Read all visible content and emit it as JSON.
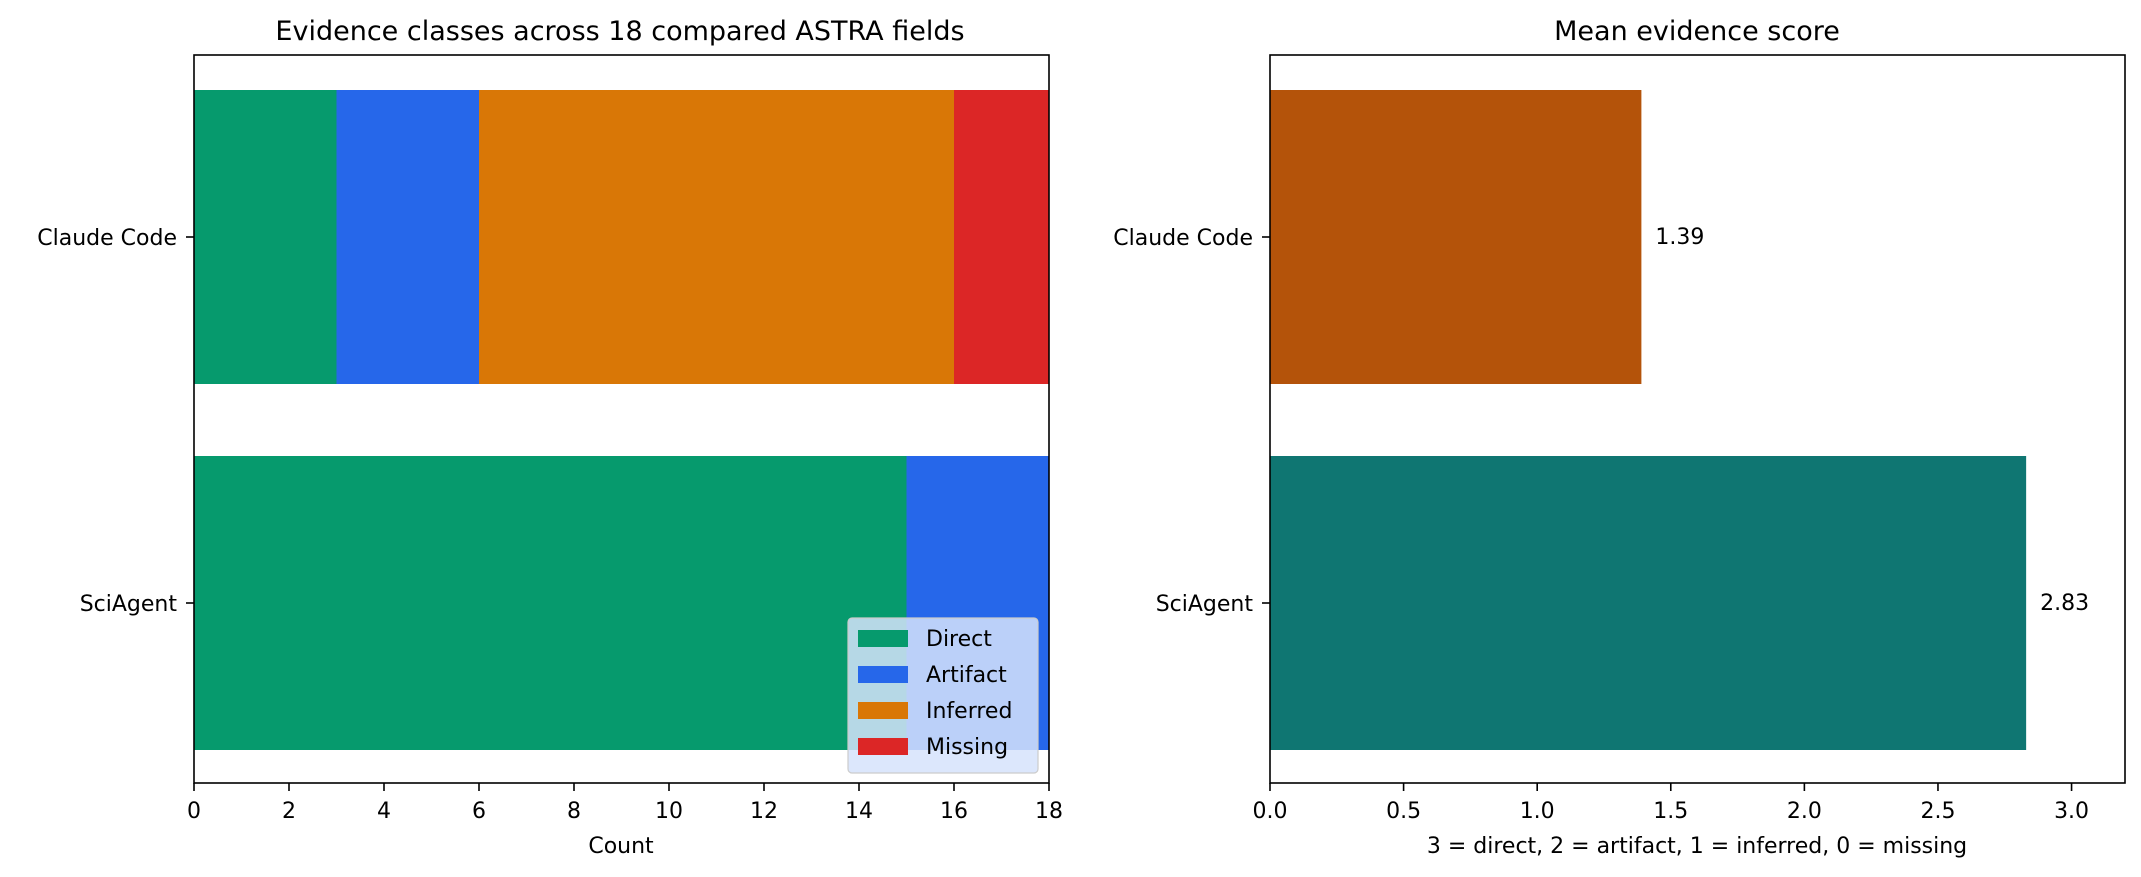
{
  "chart_data": [
    {
      "type": "bar",
      "orientation": "horizontal",
      "stacked": true,
      "title": "Evidence classes across 18 compared ASTRA fields",
      "xlabel": "Count",
      "ylabel": "",
      "xlim": [
        0,
        18
      ],
      "xticks": [
        0,
        2,
        4,
        6,
        8,
        10,
        12,
        14,
        16,
        18
      ],
      "categories": [
        "Claude Code",
        "SciAgent"
      ],
      "series": [
        {
          "name": "Direct",
          "color": "#069a6d",
          "values": [
            3,
            15
          ]
        },
        {
          "name": "Artifact",
          "color": "#2667ea",
          "values": [
            3,
            3
          ]
        },
        {
          "name": "Inferred",
          "color": "#d97706",
          "values": [
            10,
            0
          ]
        },
        {
          "name": "Missing",
          "color": "#dc2626",
          "values": [
            2,
            0
          ]
        }
      ],
      "legend": {
        "placement": "lower-right",
        "background": "#d6e3fb"
      },
      "grid": false
    },
    {
      "type": "bar",
      "orientation": "horizontal",
      "title": "Mean evidence score",
      "xlabel": "3 = direct, 2 = artifact, 1 = inferred, 0 = missing",
      "ylabel": "",
      "xlim": [
        0,
        3.2
      ],
      "xticks": [
        0.0,
        0.5,
        1.0,
        1.5,
        2.0,
        2.5,
        3.0
      ],
      "tick_labels": [
        "0.0",
        "0.5",
        "1.0",
        "1.5",
        "2.0",
        "2.5",
        "3.0"
      ],
      "categories": [
        "Claude Code",
        "SciAgent"
      ],
      "values": [
        1.39,
        2.83
      ],
      "value_labels": [
        "1.39",
        "2.83"
      ],
      "colors": [
        "#b4530a",
        "#0f7672"
      ],
      "grid": false
    }
  ]
}
